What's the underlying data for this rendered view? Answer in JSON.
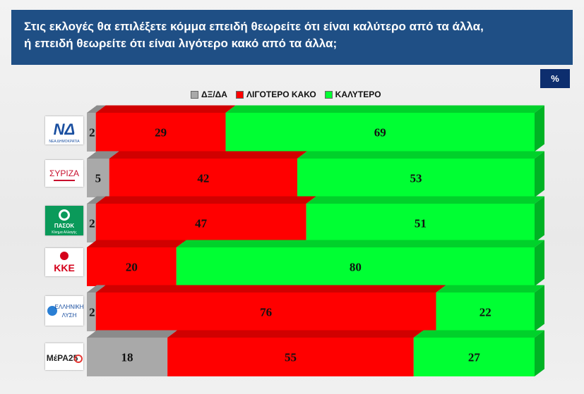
{
  "header": {
    "line1": "Στις εκλογές θα επιλέξετε κόμμα επειδή θεωρείτε ότι είναι καλύτερο από τα άλλα,",
    "line2": "ή επειδή θεωρείτε ότι είναι λιγότερο κακό από τα άλλα;"
  },
  "unit_label": "%",
  "logos": [
    {
      "icon": "nea-dimokratia-logo-icon",
      "text": "ΝΔ",
      "sub": "ΝΕΑ ΔΗΜΟΚΡΑΤΙΑ"
    },
    {
      "icon": "syriza-logo-icon",
      "text": "ΣΥΡΙΖΑ"
    },
    {
      "icon": "pasok-logo-icon",
      "text": "ΠΑΣΟΚ",
      "sub": "Κίνημα Αλλαγής"
    },
    {
      "icon": "kke-logo-icon",
      "text": "ΚΚΕ"
    },
    {
      "icon": "elliniki-lysi-logo-icon",
      "text": "ΕΛΛΗΝΙΚΗ",
      "sub": "ΛΥΣΗ"
    },
    {
      "icon": "mera25-logo-icon",
      "text": "ΜέΡΑ25"
    }
  ],
  "colors": {
    "dk": "#a9a9a9",
    "less_bad": "#ff0000",
    "better": "#00ff33"
  },
  "chart_data": {
    "type": "bar",
    "orientation": "horizontal",
    "stacked": true,
    "categories": [
      "ΝΔ",
      "ΣΥΡΙΖΑ",
      "ΠΑΣΟΚ",
      "ΚΚΕ",
      "ΕΛΛΗΝΙΚΗ ΛΥΣΗ",
      "ΜέΡΑ25"
    ],
    "series": [
      {
        "name": "ΔΞ/ΔΑ",
        "color": "#a9a9a9",
        "values": [
          2,
          5,
          2,
          0,
          2,
          18
        ]
      },
      {
        "name": "ΛΙΓΟΤΕΡΟ ΚΑΚΟ",
        "color": "#ff0000",
        "values": [
          29,
          42,
          47,
          20,
          76,
          55
        ]
      },
      {
        "name": "ΚΑΛΥΤΕΡΟ",
        "color": "#00ff33",
        "values": [
          69,
          53,
          51,
          80,
          22,
          27
        ]
      }
    ],
    "xlim": [
      0,
      100
    ],
    "legend_position": "top"
  }
}
